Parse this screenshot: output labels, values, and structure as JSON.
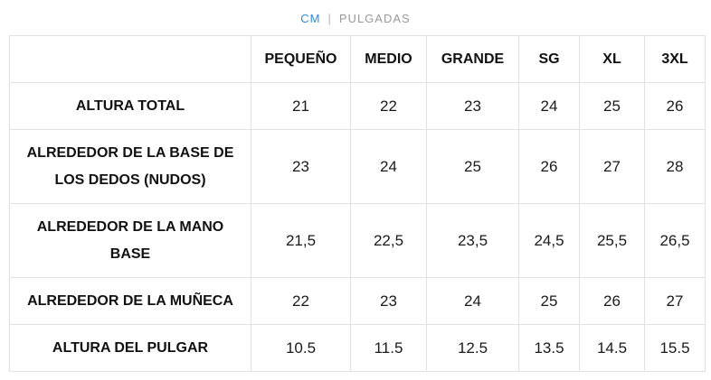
{
  "unit_toggle": {
    "cm_label": "CM",
    "separator": "|",
    "inches_label": "PULGADAS",
    "active": "CM",
    "active_color": "#2f8ae0",
    "inactive_color": "#9a9a9a"
  },
  "table": {
    "headers": [
      "",
      "PEQUEÑO",
      "MEDIO",
      "GRANDE",
      "SG",
      "XL",
      "3XL"
    ],
    "rows": [
      {
        "label": "ALTURA TOTAL",
        "values": [
          "21",
          "22",
          "23",
          "24",
          "25",
          "26"
        ]
      },
      {
        "label": "ALREDEDOR DE LA BASE DE LOS DEDOS (NUDOS)",
        "values": [
          "23",
          "24",
          "25",
          "26",
          "27",
          "28"
        ]
      },
      {
        "label": "ALREDEDOR DE LA MANO BASE",
        "values": [
          "21,5",
          "22,5",
          "23,5",
          "24,5",
          "25,5",
          "26,5"
        ]
      },
      {
        "label": "ALREDEDOR DE LA MUÑECA",
        "values": [
          "22",
          "23",
          "24",
          "25",
          "26",
          "27"
        ]
      },
      {
        "label": "ALTURA DEL PULGAR",
        "values": [
          "10.5",
          "11.5",
          "12.5",
          "13.5",
          "14.5",
          "15.5"
        ]
      }
    ]
  }
}
